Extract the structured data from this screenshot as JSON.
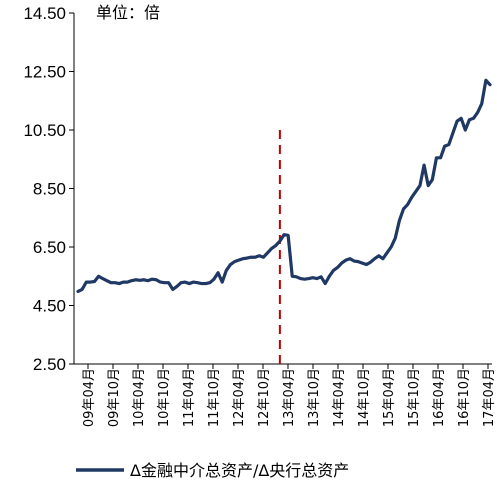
{
  "chart_data": {
    "type": "line",
    "unit_label": "单位：倍",
    "ylim": [
      2.5,
      14.5
    ],
    "yticks": [
      "2.50",
      "4.50",
      "6.50",
      "8.50",
      "10.50",
      "12.50",
      "14.50"
    ],
    "xtick_labels": [
      "09年04月",
      "09年10月",
      "10年04月",
      "10年10月",
      "11年04月",
      "11年10月",
      "12年04月",
      "12年10月",
      "13年04月",
      "13年10月",
      "14年04月",
      "14年10月",
      "15年04月",
      "15年10月",
      "16年04月",
      "16年10月",
      "17年04月"
    ],
    "x_start": "2009-01",
    "x_end": "2017-05",
    "marker_line": {
      "at": "2013-02",
      "color": "#c00000",
      "style": "dashed"
    },
    "series": [
      {
        "name": "Δ金融中介总资产/Δ央行总资产",
        "color": "#1f3864",
        "x": [
          "2009-01",
          "2009-02",
          "2009-03",
          "2009-04",
          "2009-05",
          "2009-06",
          "2009-07",
          "2009-08",
          "2009-09",
          "2009-10",
          "2009-11",
          "2009-12",
          "2010-01",
          "2010-02",
          "2010-03",
          "2010-04",
          "2010-05",
          "2010-06",
          "2010-07",
          "2010-08",
          "2010-09",
          "2010-10",
          "2010-11",
          "2010-12",
          "2011-01",
          "2011-02",
          "2011-03",
          "2011-04",
          "2011-05",
          "2011-06",
          "2011-07",
          "2011-08",
          "2011-09",
          "2011-10",
          "2011-11",
          "2011-12",
          "2012-01",
          "2012-02",
          "2012-03",
          "2012-04",
          "2012-05",
          "2012-06",
          "2012-07",
          "2012-08",
          "2012-09",
          "2012-10",
          "2012-11",
          "2012-12",
          "2013-01",
          "2013-02",
          "2013-03",
          "2013-04",
          "2013-05",
          "2013-06",
          "2013-07",
          "2013-08",
          "2013-09",
          "2013-10",
          "2013-11",
          "2013-12",
          "2014-01",
          "2014-02",
          "2014-03",
          "2014-04",
          "2014-05",
          "2014-06",
          "2014-07",
          "2014-08",
          "2014-09",
          "2014-10",
          "2014-11",
          "2014-12",
          "2015-01",
          "2015-02",
          "2015-03",
          "2015-04",
          "2015-05",
          "2015-06",
          "2015-07",
          "2015-08",
          "2015-09",
          "2015-10",
          "2015-11",
          "2015-12",
          "2016-01",
          "2016-02",
          "2016-03",
          "2016-04",
          "2016-05",
          "2016-06",
          "2016-07",
          "2016-08",
          "2016-09",
          "2016-10",
          "2016-11",
          "2016-12",
          "2017-01",
          "2017-02",
          "2017-03",
          "2017-04",
          "2017-05"
        ],
        "values": [
          4.98,
          5.05,
          5.3,
          5.3,
          5.32,
          5.5,
          5.42,
          5.35,
          5.28,
          5.28,
          5.25,
          5.3,
          5.3,
          5.35,
          5.38,
          5.36,
          5.38,
          5.35,
          5.4,
          5.38,
          5.3,
          5.28,
          5.28,
          5.05,
          5.15,
          5.28,
          5.3,
          5.25,
          5.3,
          5.28,
          5.25,
          5.25,
          5.28,
          5.4,
          5.62,
          5.3,
          5.7,
          5.9,
          6.0,
          6.05,
          6.1,
          6.12,
          6.15,
          6.15,
          6.2,
          6.15,
          6.3,
          6.45,
          6.55,
          6.7,
          6.92,
          6.9,
          5.5,
          5.48,
          5.42,
          5.4,
          5.42,
          5.45,
          5.42,
          5.48,
          5.25,
          5.5,
          5.7,
          5.8,
          5.95,
          6.05,
          6.1,
          6.02,
          6.0,
          5.95,
          5.9,
          5.98,
          6.1,
          6.2,
          6.1,
          6.3,
          6.5,
          6.8,
          7.4,
          7.8,
          7.95,
          8.2,
          8.4,
          8.6,
          9.3,
          8.6,
          8.8,
          9.55,
          9.55,
          9.95,
          10.0,
          10.4,
          10.8,
          10.9,
          10.5,
          10.85,
          10.9,
          11.1,
          11.4,
          12.2,
          12.05
        ]
      }
    ]
  }
}
